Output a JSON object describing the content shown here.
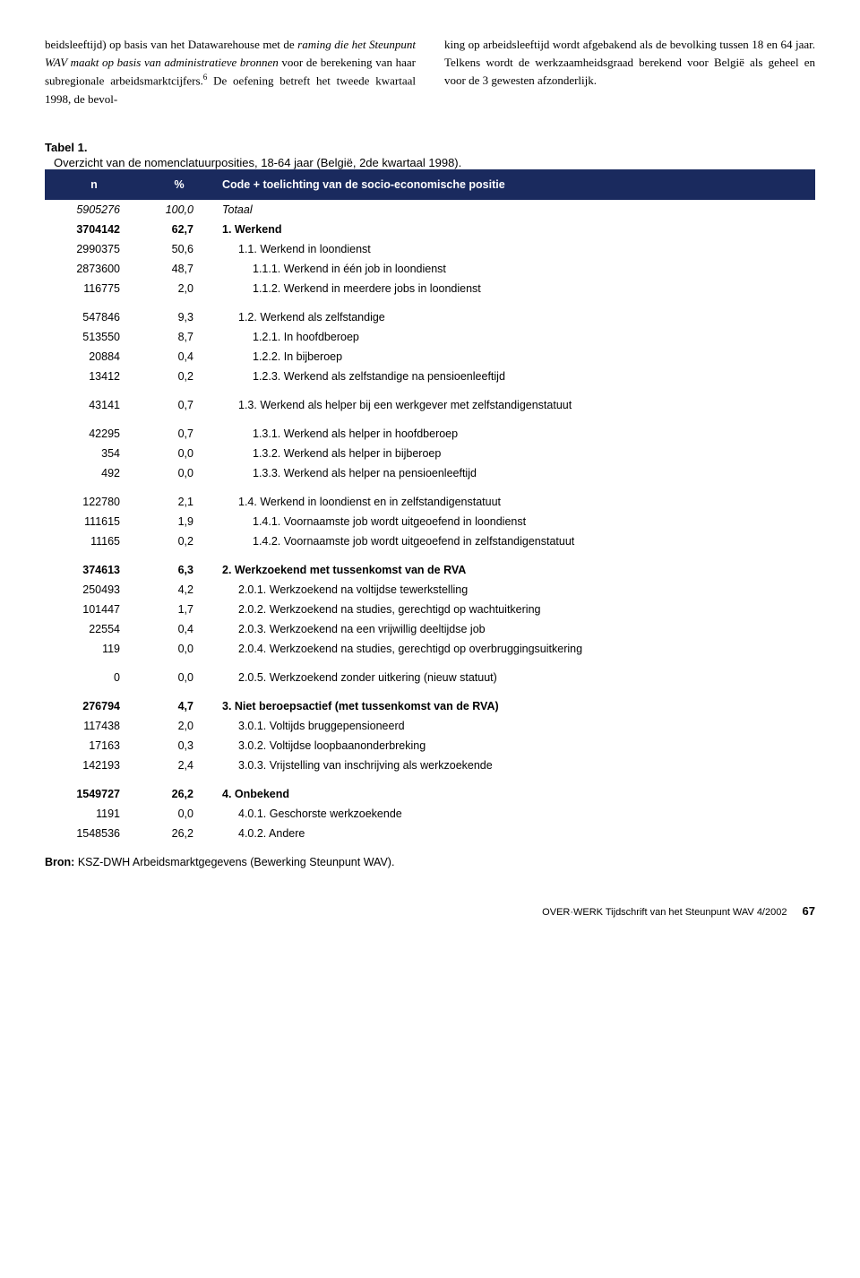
{
  "paragraph": {
    "left": "beidsleeftijd) op basis van het Datawarehouse met de <span class=\"italic\">raming die het Steunpunt WAV maakt op basis van administratieve bronnen</span> voor de berekening van haar subregionale arbeidsmarktcijfers.<span class=\"sup\">6</span> De oefening betreft het tweede kwartaal 1998, de bevol-",
    "right": "king op arbeidsleeftijd wordt afgebakend als de bevolking tussen 18 en 64 jaar. Telkens wordt de werkzaamheidsgraad berekend voor België als geheel en voor de 3 gewesten afzonderlijk."
  },
  "table": {
    "label": "Tabel 1.",
    "subtitle": "Overzicht van de nomenclatuurposities, 18-64 jaar (België, 2de kwartaal 1998).",
    "headers": {
      "n": "n",
      "pct": "%",
      "code": "Code + toelichting van de socio-economische positie"
    },
    "rows": [
      {
        "n": "5905276",
        "pct": "100,0",
        "code": "Totaal",
        "style": "italic",
        "indent": 0
      },
      {
        "n": "3704142",
        "pct": "62,7",
        "code": "1. Werkend",
        "style": "bold",
        "indent": 0
      },
      {
        "n": "2990375",
        "pct": "50,6",
        "code": "1.1. Werkend in loondienst",
        "indent": 1
      },
      {
        "n": "2873600",
        "pct": "48,7",
        "code": "1.1.1. Werkend in één job in loondienst",
        "indent": 2
      },
      {
        "n": "116775",
        "pct": "2,0",
        "code": "1.1.2. Werkend in meerdere jobs in loondienst",
        "indent": 2
      },
      {
        "spacer": true
      },
      {
        "n": "547846",
        "pct": "9,3",
        "code": "1.2. Werkend als zelfstandige",
        "indent": 1
      },
      {
        "n": "513550",
        "pct": "8,7",
        "code": "1.2.1. In hoofdberoep",
        "indent": 2
      },
      {
        "n": "20884",
        "pct": "0,4",
        "code": "1.2.2. In bijberoep",
        "indent": 2
      },
      {
        "n": "13412",
        "pct": "0,2",
        "code": "1.2.3. Werkend als zelfstandige na pensioenleeftijd",
        "indent": 2
      },
      {
        "spacer": true
      },
      {
        "n": "43141",
        "pct": "0,7",
        "code": "1.3. Werkend als helper bij een werkgever met zelfstandigenstatuut",
        "indent": 1
      },
      {
        "spacer": true
      },
      {
        "n": "42295",
        "pct": "0,7",
        "code": "1.3.1. Werkend als helper in hoofdberoep",
        "indent": 2
      },
      {
        "n": "354",
        "pct": "0,0",
        "code": "1.3.2. Werkend als helper in bijberoep",
        "indent": 2
      },
      {
        "n": "492",
        "pct": "0,0",
        "code": "1.3.3. Werkend als helper na pensioenleeftijd",
        "indent": 2
      },
      {
        "spacer": true
      },
      {
        "n": "122780",
        "pct": "2,1",
        "code": "1.4. Werkend in loondienst en in zelfstandigenstatuut",
        "indent": 1
      },
      {
        "n": "111615",
        "pct": "1,9",
        "code": "1.4.1. Voornaamste job wordt uitgeoefend in loondienst",
        "indent": 2
      },
      {
        "n": "11165",
        "pct": "0,2",
        "code": "1.4.2. Voornaamste job wordt uitgeoefend in zelfstandigenstatuut",
        "indent": 2
      },
      {
        "spacer": true
      },
      {
        "n": "374613",
        "pct": "6,3",
        "code": "2. Werkzoekend met tussenkomst van de RVA",
        "style": "bold",
        "indent": 0
      },
      {
        "n": "250493",
        "pct": "4,2",
        "code": "2.0.1. Werkzoekend na voltijdse tewerkstelling",
        "indent": 1
      },
      {
        "n": "101447",
        "pct": "1,7",
        "code": "2.0.2. Werkzoekend na studies, gerechtigd op wachtuitkering",
        "indent": 1
      },
      {
        "n": "22554",
        "pct": "0,4",
        "code": "2.0.3. Werkzoekend na een vrijwillig deeltijdse job",
        "indent": 1
      },
      {
        "n": "119",
        "pct": "0,0",
        "code": "2.0.4. Werkzoekend na studies, gerechtigd op overbruggingsuitkering",
        "indent": 1
      },
      {
        "spacer": true
      },
      {
        "n": "0",
        "pct": "0,0",
        "code": "2.0.5. Werkzoekend zonder uitkering (nieuw statuut)",
        "indent": 1
      },
      {
        "spacer": true
      },
      {
        "n": "276794",
        "pct": "4,7",
        "code": "3. Niet beroepsactief (met tussenkomst van de RVA)",
        "style": "bold",
        "indent": 0
      },
      {
        "n": "117438",
        "pct": "2,0",
        "code": "3.0.1. Voltijds bruggepensioneerd",
        "indent": 1
      },
      {
        "n": "17163",
        "pct": "0,3",
        "code": "3.0.2. Voltijdse loopbaanonderbreking",
        "indent": 1
      },
      {
        "n": "142193",
        "pct": "2,4",
        "code": "3.0.3. Vrijstelling van inschrijving als werkzoekende",
        "indent": 1
      },
      {
        "spacer": true
      },
      {
        "n": "1549727",
        "pct": "26,2",
        "code": "4. Onbekend",
        "style": "bold",
        "indent": 0
      },
      {
        "n": "1191",
        "pct": "0,0",
        "code": "4.0.1. Geschorste werkzoekende",
        "indent": 1
      },
      {
        "n": "1548536",
        "pct": "26,2",
        "code": "4.0.2. Andere",
        "indent": 1
      }
    ],
    "source_label": "Bron:",
    "source_text": "KSZ-DWH Arbeidsmarktgegevens (Bewerking Steunpunt WAV)."
  },
  "footer": {
    "journal": "OVER·WERK Tijdschrift van het Steunpunt WAV 4/2002",
    "page": "67"
  },
  "colors": {
    "header_bg": "#1a2a5e",
    "header_text": "#ffffff",
    "text": "#000000",
    "background": "#ffffff"
  }
}
